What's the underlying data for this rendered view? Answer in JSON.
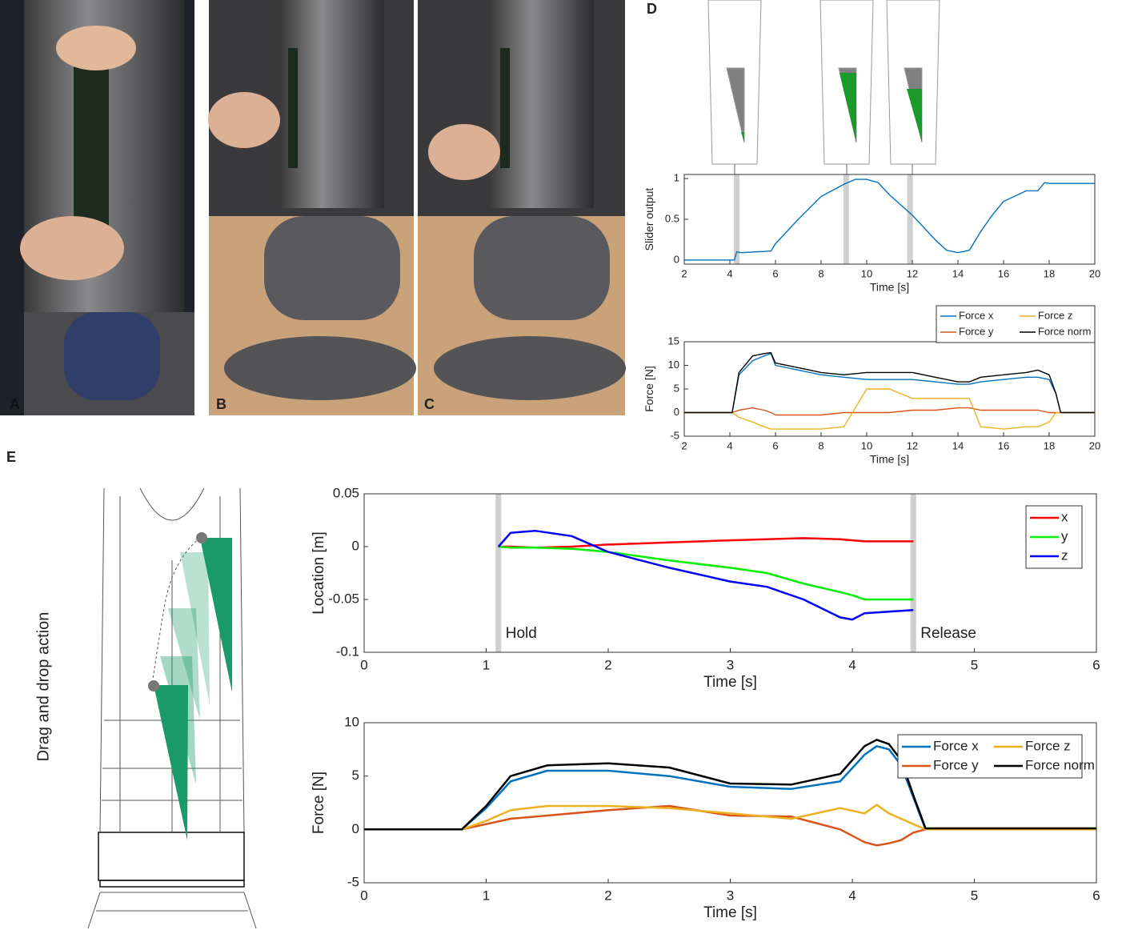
{
  "panel_labels": [
    "A",
    "B",
    "C",
    "D",
    "E"
  ],
  "side_label": "Drag and drop action",
  "chart_data": [
    {
      "type": "line",
      "ylabel": "Slider output",
      "xlabel": "Time [s]",
      "xlim": [
        2,
        20
      ],
      "xticks": [
        2,
        4,
        6,
        8,
        10,
        12,
        14,
        16,
        18,
        20
      ],
      "ylim": [
        -0.05,
        1.05
      ],
      "yticks": [
        0,
        0.5,
        1
      ],
      "markers": [
        4.3,
        9.1,
        11.9
      ],
      "x": [
        2,
        4.2,
        4.3,
        4.5,
        5.8,
        6,
        7,
        8,
        9,
        9.5,
        10,
        10.5,
        11,
        12,
        13,
        13.5,
        14,
        14.5,
        15,
        15.5,
        16,
        17,
        17.5,
        17.8,
        18,
        20
      ],
      "series": [
        {
          "name": "Slider output",
          "color": "#0072bd",
          "values": [
            0,
            0,
            0.1,
            0.09,
            0.11,
            0.2,
            0.5,
            0.78,
            0.93,
            0.99,
            0.99,
            0.95,
            0.8,
            0.55,
            0.25,
            0.12,
            0.09,
            0.12,
            0.35,
            0.55,
            0.72,
            0.85,
            0.85,
            0.95,
            0.94,
            0.94
          ]
        }
      ]
    },
    {
      "type": "line",
      "ylabel": "Force [N]",
      "xlabel": "Time [s]",
      "legend": "above right",
      "xlim": [
        2,
        20
      ],
      "xticks": [
        2,
        4,
        6,
        8,
        10,
        12,
        14,
        16,
        18,
        20
      ],
      "ylim": [
        -5,
        15
      ],
      "yticks": [
        -5,
        0,
        5,
        10,
        15
      ],
      "x": [
        2,
        4.1,
        4.4,
        5,
        5.5,
        5.8,
        6,
        7,
        8,
        9,
        10,
        11,
        12,
        13,
        14,
        14.5,
        15,
        16,
        17,
        17.5,
        18,
        18.3,
        18.5,
        20
      ],
      "series": [
        {
          "name": "Force x",
          "color": "#0072bd",
          "values": [
            0,
            0,
            8,
            11,
            12,
            12.5,
            10,
            9,
            8,
            7.5,
            7,
            7,
            7,
            6.5,
            6,
            6,
            6.5,
            7,
            7.5,
            7.5,
            7,
            4,
            0,
            0
          ]
        },
        {
          "name": "Force y",
          "color": "#d95319",
          "values": [
            0,
            0,
            0.5,
            1,
            0.5,
            0,
            -0.5,
            -0.5,
            -0.5,
            0,
            0,
            0,
            0.5,
            0.5,
            1,
            1,
            0.5,
            0.5,
            0.5,
            0.5,
            0,
            0,
            0,
            0
          ]
        },
        {
          "name": "Force z",
          "color": "#edb120",
          "values": [
            0,
            0,
            -1,
            -2,
            -3,
            -3.5,
            -3.5,
            -3.5,
            -3.5,
            -3,
            5,
            5,
            3,
            3,
            3,
            3,
            -3,
            -3.5,
            -3,
            -3,
            -2,
            0,
            0,
            0
          ]
        },
        {
          "name": "Force norm",
          "color": "#000000",
          "values": [
            0,
            0,
            8.5,
            12,
            12.5,
            12.7,
            10.5,
            9.5,
            8.5,
            8,
            8.5,
            8.5,
            8.5,
            7.5,
            6.5,
            6.5,
            7.5,
            8,
            8.5,
            9,
            8,
            4,
            0,
            0
          ]
        }
      ]
    },
    {
      "type": "line",
      "ylabel": "Location [m]",
      "xlabel": "Time [s]",
      "legend": "upper right",
      "xlim": [
        0,
        6
      ],
      "xticks": [
        0,
        1,
        2,
        3,
        4,
        5,
        6
      ],
      "ylim": [
        -0.1,
        0.05
      ],
      "yticks": [
        -0.1,
        -0.05,
        0,
        0.05
      ],
      "markers": [
        1.1,
        4.5
      ],
      "marker_labels": [
        "Hold",
        "Release"
      ],
      "x": [
        1.1,
        1.2,
        1.4,
        1.7,
        2,
        2.5,
        3,
        3.3,
        3.6,
        3.9,
        4,
        4.1,
        4.5
      ],
      "series": [
        {
          "name": "x",
          "color": "#ff0000",
          "values": [
            0,
            0,
            -0.001,
            0,
            0.002,
            0.004,
            0.006,
            0.007,
            0.008,
            0.007,
            0.006,
            0.005,
            0.005
          ]
        },
        {
          "name": "y",
          "color": "#00ee00",
          "values": [
            0,
            -0.001,
            -0.001,
            -0.002,
            -0.005,
            -0.013,
            -0.02,
            -0.025,
            -0.035,
            -0.043,
            -0.046,
            -0.05,
            -0.05
          ]
        },
        {
          "name": "z",
          "color": "#0000ff",
          "values": [
            0,
            0.013,
            0.015,
            0.01,
            -0.005,
            -0.02,
            -0.033,
            -0.038,
            -0.05,
            -0.067,
            -0.069,
            -0.063,
            -0.06
          ]
        }
      ]
    },
    {
      "type": "line",
      "ylabel": "Force [N]",
      "xlabel": "Time [s]",
      "legend": "upper right",
      "xlim": [
        0,
        6
      ],
      "xticks": [
        0,
        1,
        2,
        3,
        4,
        5,
        6
      ],
      "ylim": [
        -5,
        10
      ],
      "yticks": [
        -5,
        0,
        5,
        10
      ],
      "x": [
        0,
        0.8,
        1,
        1.2,
        1.5,
        2,
        2.5,
        3,
        3.5,
        3.9,
        4.1,
        4.2,
        4.3,
        4.4,
        4.5,
        4.6,
        5,
        6
      ],
      "series": [
        {
          "name": "Force x",
          "color": "#0072bd",
          "values": [
            0,
            0,
            2,
            4.5,
            5.5,
            5.5,
            5,
            4,
            3.8,
            4.5,
            7,
            7.8,
            7.5,
            6,
            3,
            0,
            0,
            0
          ]
        },
        {
          "name": "Force y",
          "color": "#d95319",
          "values": [
            0,
            0,
            0.5,
            1,
            1.3,
            1.8,
            2.2,
            1.3,
            1.2,
            0,
            -1.2,
            -1.5,
            -1.3,
            -1,
            -0.3,
            0,
            0,
            0
          ]
        },
        {
          "name": "Force z",
          "color": "#edb120",
          "values": [
            0,
            0,
            0.8,
            1.8,
            2.2,
            2.2,
            2,
            1.5,
            1,
            2,
            1.5,
            2.3,
            1.5,
            1,
            0.5,
            0,
            0,
            0
          ]
        },
        {
          "name": "Force norm",
          "color": "#000000",
          "values": [
            0,
            0,
            2.2,
            5,
            6,
            6.2,
            5.8,
            4.3,
            4.2,
            5.2,
            7.8,
            8.4,
            8,
            6.5,
            3.2,
            0.1,
            0.1,
            0.1
          ]
        }
      ]
    }
  ]
}
